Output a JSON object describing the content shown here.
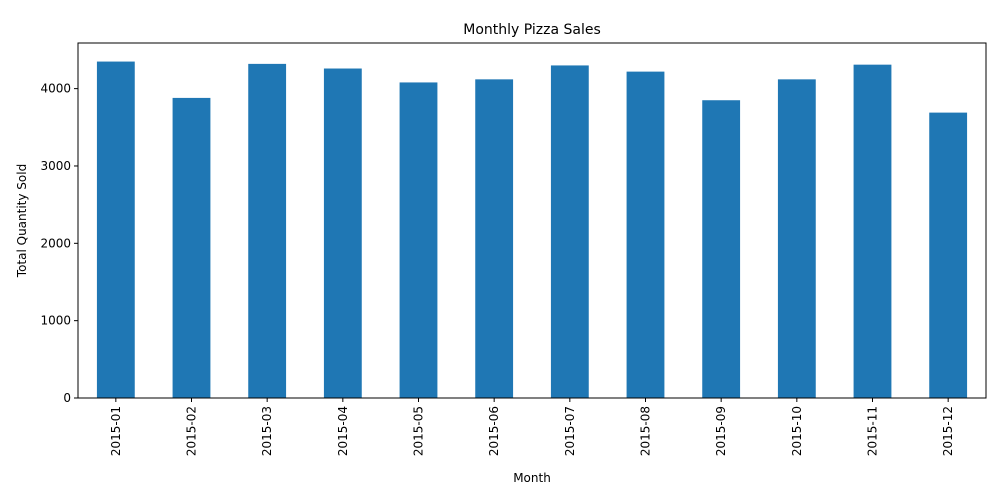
{
  "chart_data": {
    "type": "bar",
    "title": "Monthly Pizza Sales",
    "xlabel": "Month",
    "ylabel": "Total Quantity Sold",
    "categories": [
      "2015-01",
      "2015-02",
      "2015-03",
      "2015-04",
      "2015-05",
      "2015-06",
      "2015-07",
      "2015-08",
      "2015-09",
      "2015-10",
      "2015-11",
      "2015-12"
    ],
    "values": [
      4350,
      3880,
      4320,
      4260,
      4080,
      4120,
      4300,
      4220,
      3850,
      4120,
      4310,
      3690
    ],
    "ylim": [
      0,
      4590
    ],
    "yticks": [
      0,
      1000,
      2000,
      3000,
      4000
    ],
    "grid": false,
    "legend": false,
    "bar_color": "#1f77b4"
  }
}
